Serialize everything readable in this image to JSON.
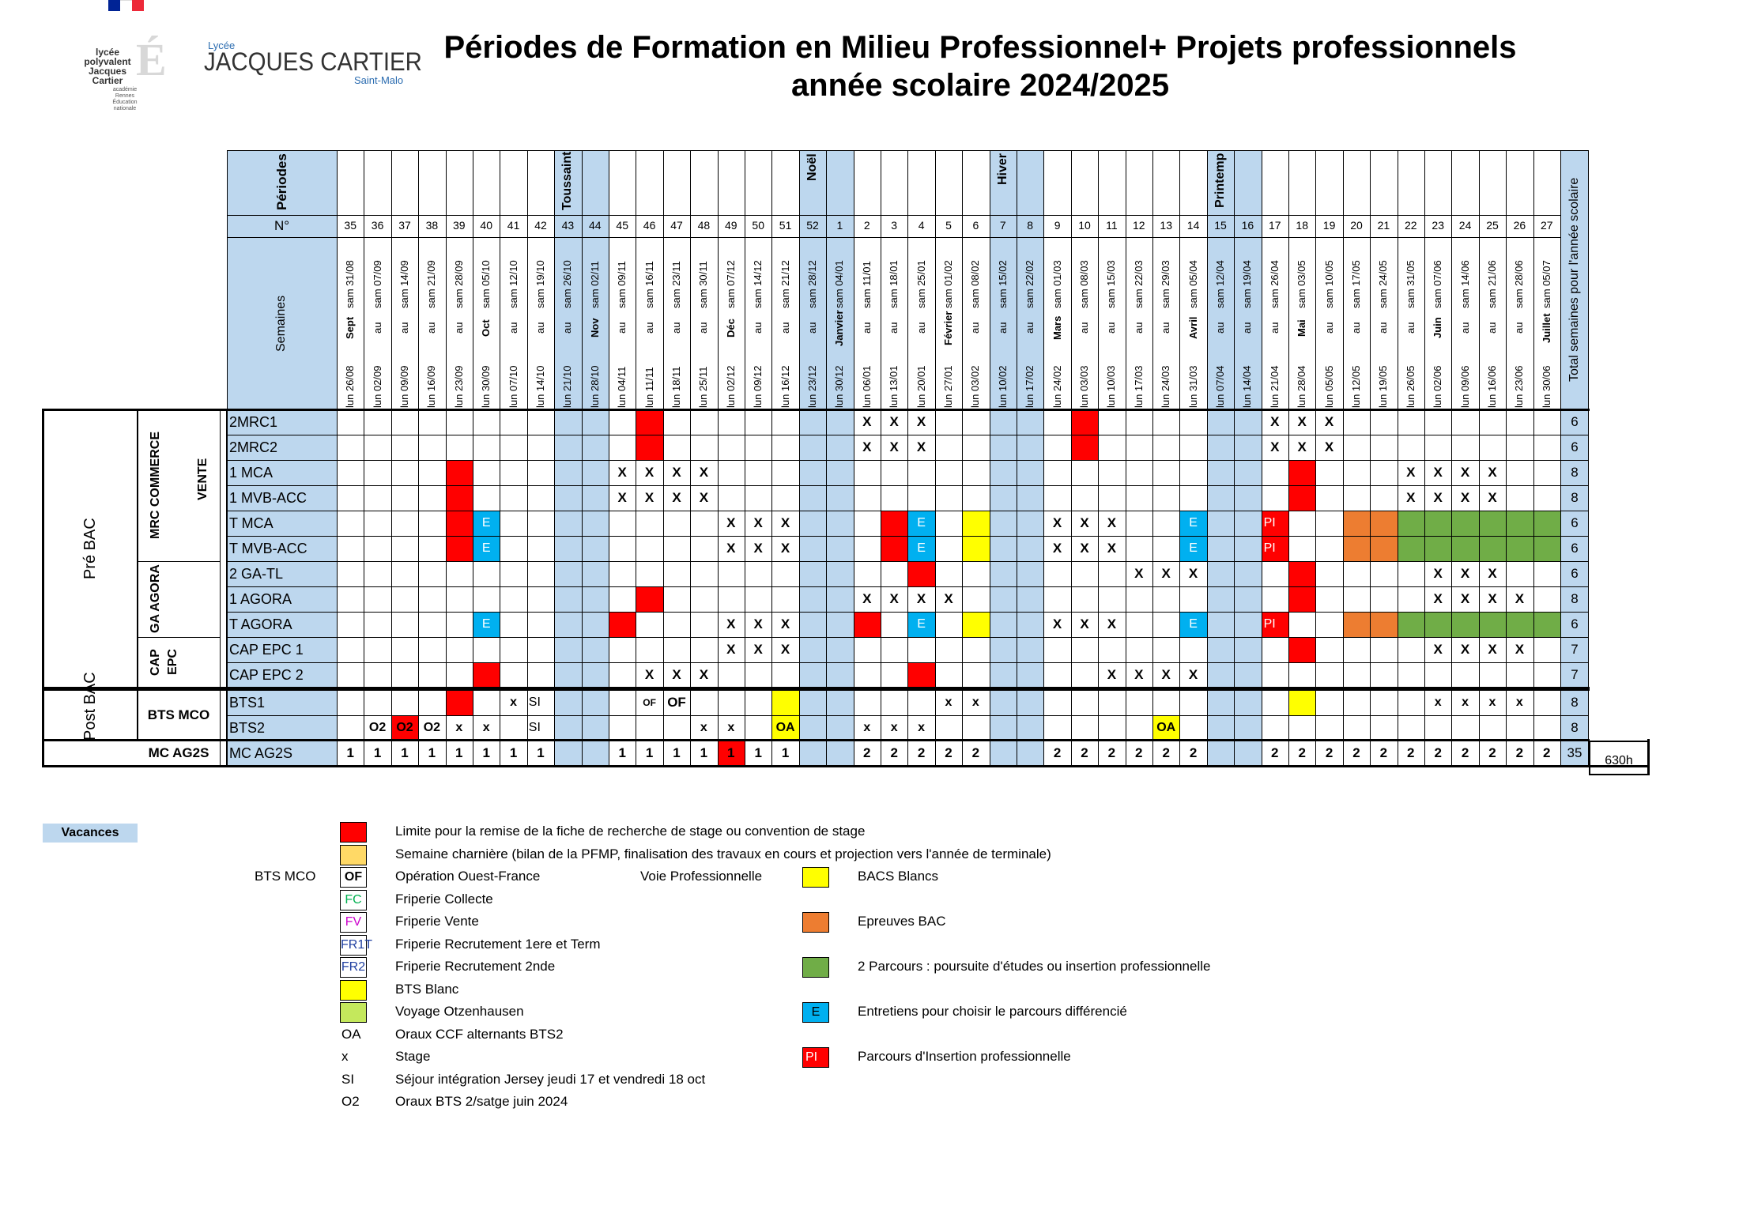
{
  "header": {
    "title_line1": "Périodes de Formation en Milieu Professionnel+ Projets professionnels",
    "title_line2": "année scolaire 2024/2025",
    "logo_lycee_small": "lycée polyvalent Jacques Cartier",
    "logo_academie": "académie Rennes Éducation nationale",
    "logo_lycee_word": "Lycée",
    "logo_name": "JACQUES CARTIER",
    "logo_city": "Saint-Malo"
  },
  "grid": {
    "periodes_label": "Périodes",
    "num_label": "N°",
    "semaines_label": "Semaines",
    "total_label": "Total semaines pour l'année scolaire",
    "weeks": [
      {
        "n": "35",
        "start": "lun 26/08",
        "mid": "Sept",
        "end": "sam 31/08",
        "vac": false
      },
      {
        "n": "36",
        "start": "lun 02/09",
        "mid": "au",
        "end": "sam 07/09",
        "vac": false
      },
      {
        "n": "37",
        "start": "lun 09/09",
        "mid": "au",
        "end": "sam 14/09",
        "vac": false
      },
      {
        "n": "38",
        "start": "lun 16/09",
        "mid": "au",
        "end": "sam 21/09",
        "vac": false
      },
      {
        "n": "39",
        "start": "lun 23/09",
        "mid": "au",
        "end": "sam 28/09",
        "vac": false
      },
      {
        "n": "40",
        "start": "lun 30/09",
        "mid": "Oct",
        "end": "sam 05/10",
        "vac": false
      },
      {
        "n": "41",
        "start": "lun 07/10",
        "mid": "au",
        "end": "sam 12/10",
        "vac": false
      },
      {
        "n": "42",
        "start": "lun 14/10",
        "mid": "au",
        "end": "sam 19/10",
        "vac": false
      },
      {
        "n": "43",
        "start": "lun 21/10",
        "mid": "au",
        "end": "sam 26/10",
        "vac": true,
        "period": "Toussaint"
      },
      {
        "n": "44",
        "start": "lun 28/10",
        "mid": "Nov",
        "end": "sam 02/11",
        "vac": true
      },
      {
        "n": "45",
        "start": "lun 04/11",
        "mid": "au",
        "end": "sam 09/11",
        "vac": false
      },
      {
        "n": "46",
        "start": "lun 11/11",
        "mid": "au",
        "end": "sam 16/11",
        "vac": false
      },
      {
        "n": "47",
        "start": "lun 18/11",
        "mid": "au",
        "end": "sam 23/11",
        "vac": false
      },
      {
        "n": "48",
        "start": "lun 25/11",
        "mid": "au",
        "end": "sam 30/11",
        "vac": false
      },
      {
        "n": "49",
        "start": "lun 02/12",
        "mid": "Déc",
        "end": "sam 07/12",
        "vac": false
      },
      {
        "n": "50",
        "start": "lun 09/12",
        "mid": "au",
        "end": "sam 14/12",
        "vac": false
      },
      {
        "n": "51",
        "start": "lun 16/12",
        "mid": "au",
        "end": "sam 21/12",
        "vac": false
      },
      {
        "n": "52",
        "start": "lun 23/12",
        "mid": "au",
        "end": "sam 28/12",
        "vac": true,
        "period": "Noël"
      },
      {
        "n": "1",
        "start": "lun 30/12",
        "mid": "Janvier",
        "end": "sam 04/01",
        "vac": true
      },
      {
        "n": "2",
        "start": "lun 06/01",
        "mid": "au",
        "end": "sam 11/01",
        "vac": false
      },
      {
        "n": "3",
        "start": "lun 13/01",
        "mid": "au",
        "end": "sam 18/01",
        "vac": false
      },
      {
        "n": "4",
        "start": "lun 20/01",
        "mid": "au",
        "end": "sam 25/01",
        "vac": false
      },
      {
        "n": "5",
        "start": "lun 27/01",
        "mid": "Février",
        "end": "sam 01/02",
        "vac": false
      },
      {
        "n": "6",
        "start": "lun 03/02",
        "mid": "au",
        "end": "sam 08/02",
        "vac": false
      },
      {
        "n": "7",
        "start": "lun 10/02",
        "mid": "au",
        "end": "sam 15/02",
        "vac": true,
        "period": "Hiver"
      },
      {
        "n": "8",
        "start": "lun 17/02",
        "mid": "au",
        "end": "sam 22/02",
        "vac": true
      },
      {
        "n": "9",
        "start": "lun 24/02",
        "mid": "Mars",
        "end": "sam 01/03",
        "vac": false
      },
      {
        "n": "10",
        "start": "lun 03/03",
        "mid": "au",
        "end": "sam 08/03",
        "vac": false
      },
      {
        "n": "11",
        "start": "lun 10/03",
        "mid": "au",
        "end": "sam 15/03",
        "vac": false
      },
      {
        "n": "12",
        "start": "lun 17/03",
        "mid": "au",
        "end": "sam 22/03",
        "vac": false
      },
      {
        "n": "13",
        "start": "lun 24/03",
        "mid": "au",
        "end": "sam 29/03",
        "vac": false
      },
      {
        "n": "14",
        "start": "lun 31/03",
        "mid": "Avril",
        "end": "sam 05/04",
        "vac": false
      },
      {
        "n": "15",
        "start": "lun 07/04",
        "mid": "au",
        "end": "sam 12/04",
        "vac": true,
        "period": "Printemp"
      },
      {
        "n": "16",
        "start": "lun 14/04",
        "mid": "au",
        "end": "sam 19/04",
        "vac": true
      },
      {
        "n": "17",
        "start": "lun 21/04",
        "mid": "au",
        "end": "sam 26/04",
        "vac": false
      },
      {
        "n": "18",
        "start": "lun 28/04",
        "mid": "Mai",
        "end": "sam 03/05",
        "vac": false
      },
      {
        "n": "19",
        "start": "lun 05/05",
        "mid": "au",
        "end": "sam 10/05",
        "vac": false
      },
      {
        "n": "20",
        "start": "lun 12/05",
        "mid": "au",
        "end": "sam 17/05",
        "vac": false
      },
      {
        "n": "21",
        "start": "lun 19/05",
        "mid": "au",
        "end": "sam 24/05",
        "vac": false
      },
      {
        "n": "22",
        "start": "lun 26/05",
        "mid": "au",
        "end": "sam 31/05",
        "vac": false
      },
      {
        "n": "23",
        "start": "lun 02/06",
        "mid": "Juin",
        "end": "sam 07/06",
        "vac": false
      },
      {
        "n": "24",
        "start": "lun 09/06",
        "mid": "au",
        "end": "sam 14/06",
        "vac": false
      },
      {
        "n": "25",
        "start": "lun 16/06",
        "mid": "au",
        "end": "sam 21/06",
        "vac": false
      },
      {
        "n": "26",
        "start": "lun 23/06",
        "mid": "au",
        "end": "sam 28/06",
        "vac": false
      },
      {
        "n": "27",
        "start": "lun 30/06",
        "mid": "Juillet",
        "end": "sam 05/07",
        "vac": false
      }
    ],
    "groups": [
      {
        "label": "Pré BAC",
        "rows": [
          0,
          10
        ]
      },
      {
        "label": "Post BAC",
        "rows": [
          11,
          12
        ]
      }
    ],
    "sections": [
      {
        "label": "MRC COMMERCE",
        "rows": [
          0,
          5
        ]
      },
      {
        "label": "GA AGORA",
        "rows": [
          6,
          8
        ]
      },
      {
        "label": "CAP EPC",
        "rows": [
          9,
          10
        ]
      },
      {
        "label": "BTS MCO",
        "rows": [
          11,
          12
        ]
      },
      {
        "label": "MC AG2S",
        "rows": [
          13,
          13
        ]
      }
    ],
    "subsection": {
      "label": "VENTE",
      "rows": [
        2,
        5
      ]
    },
    "rows": [
      {
        "name": "2MRC1",
        "total": "6",
        "cells": {
          "11": "red",
          "19": "X",
          "20": "X",
          "21": "X",
          "27": "red",
          "34": "X",
          "35": "X",
          "36": "X"
        }
      },
      {
        "name": "2MRC2",
        "total": "6",
        "cells": {
          "11": "red",
          "19": "X",
          "20": "X",
          "21": "X",
          "27": "red",
          "34": "X",
          "35": "X",
          "36": "X"
        }
      },
      {
        "name": "1 MCA",
        "total": "8",
        "cells": {
          "4": "red",
          "10": "X",
          "11": "X",
          "12": "X",
          "13": "X",
          "35": "red",
          "39": "X",
          "40": "X",
          "41": "X",
          "42": "X"
        }
      },
      {
        "name": "1 MVB-ACC",
        "total": "8",
        "cells": {
          "4": "red",
          "10": "X",
          "11": "X",
          "12": "X",
          "13": "X",
          "35": "red",
          "39": "X",
          "40": "X",
          "41": "X",
          "42": "X"
        }
      },
      {
        "name": "T MCA",
        "total": "6",
        "cells": {
          "4": "red",
          "5": "cyan:E",
          "14": "X",
          "15": "X",
          "16": "X",
          "20": "red",
          "21": "cyan:E",
          "23": "yellow",
          "26": "X",
          "27": "X",
          "28": "X",
          "31": "cyan:E",
          "34": "red:PI",
          "37": "orange",
          "38": "orange",
          "39": "green",
          "40": "green",
          "41": "green",
          "42": "green",
          "43": "green",
          "44": "green"
        }
      },
      {
        "name": "T MVB-ACC",
        "total": "6",
        "cells": {
          "4": "red",
          "5": "cyan:E",
          "14": "X",
          "15": "X",
          "16": "X",
          "20": "red",
          "21": "cyan:E",
          "23": "yellow",
          "26": "X",
          "27": "X",
          "28": "X",
          "31": "cyan:E",
          "34": "red:PI",
          "37": "orange",
          "38": "orange",
          "39": "green",
          "40": "green",
          "41": "green",
          "42": "green",
          "43": "green",
          "44": "green"
        }
      },
      {
        "name": "2 GA-TL",
        "total": "6",
        "cells": {
          "21": "red",
          "29": "X",
          "30": "X",
          "31": "X",
          "35": "red",
          "40": "X",
          "41": "X",
          "42": "X"
        }
      },
      {
        "name": "1 AGORA",
        "total": "8",
        "cells": {
          "11": "red",
          "19": "X",
          "20": "X",
          "21": "X",
          "22": "X",
          "35": "red",
          "40": "X",
          "41": "X",
          "42": "X",
          "43": "X"
        }
      },
      {
        "name": "T AGORA",
        "total": "6",
        "cells": {
          "5": "cyan:E",
          "10": "red",
          "14": "X",
          "15": "X",
          "16": "X",
          "19": "red",
          "21": "cyan:E",
          "23": "yellow",
          "26": "X",
          "27": "X",
          "28": "X",
          "31": "cyan:E",
          "34": "red:PI",
          "37": "orange",
          "38": "orange",
          "39": "green",
          "40": "green",
          "41": "green",
          "42": "green",
          "43": "green",
          "44": "green"
        }
      },
      {
        "name": "CAP EPC 1",
        "total": "7",
        "cells": {
          "14": "X",
          "15": "X",
          "16": "X",
          "35": "red",
          "40": "X",
          "41": "X",
          "42": "X",
          "43": "X"
        }
      },
      {
        "name": "CAP EPC 2",
        "total": "7",
        "cells": {
          "5": "red",
          "11": "X",
          "12": "X",
          "13": "X",
          "21": "red",
          "28": "X",
          "29": "X",
          "30": "X",
          "31": "X"
        }
      },
      {
        "name": "BTS1",
        "total": "8",
        "cells": {
          "4": "red",
          "6": "x",
          "7": "SI",
          "11": "OF-s",
          "12": "OF",
          "16": "yellow",
          "22": "x",
          "23": "x",
          "35": "yellow",
          "40": "x",
          "41": "x",
          "42": "x",
          "43": "x"
        }
      },
      {
        "name": "BTS2",
        "total": "8",
        "cells": {
          "1": "O2",
          "2": "red:O2",
          "3": "O2",
          "4": "x",
          "5": "x",
          "7": "SI",
          "13": "x",
          "14": "x",
          "16": "yellow:OA",
          "19": "x",
          "20": "x",
          "21": "x",
          "30": "yellow:OA"
        }
      },
      {
        "name": "MC AG2S",
        "total": "35",
        "cells": {
          "0": "1",
          "1": "1",
          "2": "1",
          "3": "1",
          "4": "1",
          "5": "1",
          "6": "1",
          "7": "1",
          "10": "1",
          "11": "1",
          "12": "1",
          "13": "1",
          "14": "red:1",
          "15": "1",
          "16": "1",
          "19": "2",
          "20": "2",
          "21": "2",
          "22": "2",
          "23": "2",
          "26": "2",
          "27": "2",
          "28": "2",
          "29": "2",
          "30": "2",
          "31": "2",
          "34": "2",
          "35": "2",
          "36": "2",
          "37": "2",
          "38": "2",
          "39": "2",
          "40": "2",
          "41": "2",
          "42": "2",
          "43": "2",
          "44": "2"
        }
      }
    ],
    "extra_total": "630h"
  },
  "legend": {
    "vacances": "Vacances",
    "bts_mco": "BTS MCO",
    "voie_pro": "Voie Professionnelle",
    "left": [
      {
        "swatch": "red",
        "code": "",
        "text": "Limite pour la remise de la fiche de recherche de stage ou convention de stage"
      },
      {
        "swatch": "lightyellow",
        "code": "",
        "text": "Semaine charnière (bilan de la PFMP, finalisation des travaux en cours et projection vers l'année de terminale)"
      },
      {
        "swatch": "box",
        "code": "OF",
        "color": "#000000",
        "text": "Opération Ouest-France"
      },
      {
        "swatch": "box",
        "code": "FC",
        "color": "#00b050",
        "text": "Friperie Collecte"
      },
      {
        "swatch": "box",
        "code": "FV",
        "color": "#cc00cc",
        "text": "Friperie Vente"
      },
      {
        "swatch": "box",
        "code": "FR1T",
        "color": "#1f3fa0",
        "text": "Friperie Recrutement 1ere et Term"
      },
      {
        "swatch": "box",
        "code": "FR2",
        "color": "#1f3fa0",
        "text": "Friperie Recrutement 2nde"
      },
      {
        "swatch": "yellow",
        "code": "",
        "text": "BTS Blanc"
      },
      {
        "swatch": "lime",
        "code": "",
        "text": "Voyage Otzenhausen"
      },
      {
        "swatch": "none",
        "code": "OA",
        "text": "Oraux CCF alternants BTS2"
      },
      {
        "swatch": "none",
        "code": "x",
        "text": "Stage"
      },
      {
        "swatch": "none",
        "code": "SI",
        "text": "Séjour intégration Jersey  jeudi 17 et vendredi 18 oct"
      },
      {
        "swatch": "none",
        "code": "O2",
        "text": "Oraux BTS 2/satge juin 2024"
      }
    ],
    "right": [
      {
        "swatch": "yellow",
        "code": "",
        "text": "BACS Blancs",
        "row": 2
      },
      {
        "swatch": "orange",
        "code": "",
        "text": "Epreuves BAC",
        "row": 4
      },
      {
        "swatch": "green",
        "code": "",
        "text": "2 Parcours : poursuite d'études ou insertion professionnelle",
        "row": 6
      },
      {
        "swatch": "cyan",
        "code": "E",
        "text": "Entretiens pour choisir le parcours différencié",
        "row": 8
      },
      {
        "swatch": "red",
        "code": "PI",
        "text": "Parcours d'Insertion professionnelle",
        "row": 10
      }
    ]
  },
  "colors": {
    "vacation_blue": "#bdd7ee",
    "red": "#ff0000",
    "yellow": "#ffff00",
    "orange": "#ed7d31",
    "green": "#70ad47",
    "cyan": "#00b0f0",
    "light_yellow": "#ffd966",
    "lime": "#c4e85c"
  }
}
